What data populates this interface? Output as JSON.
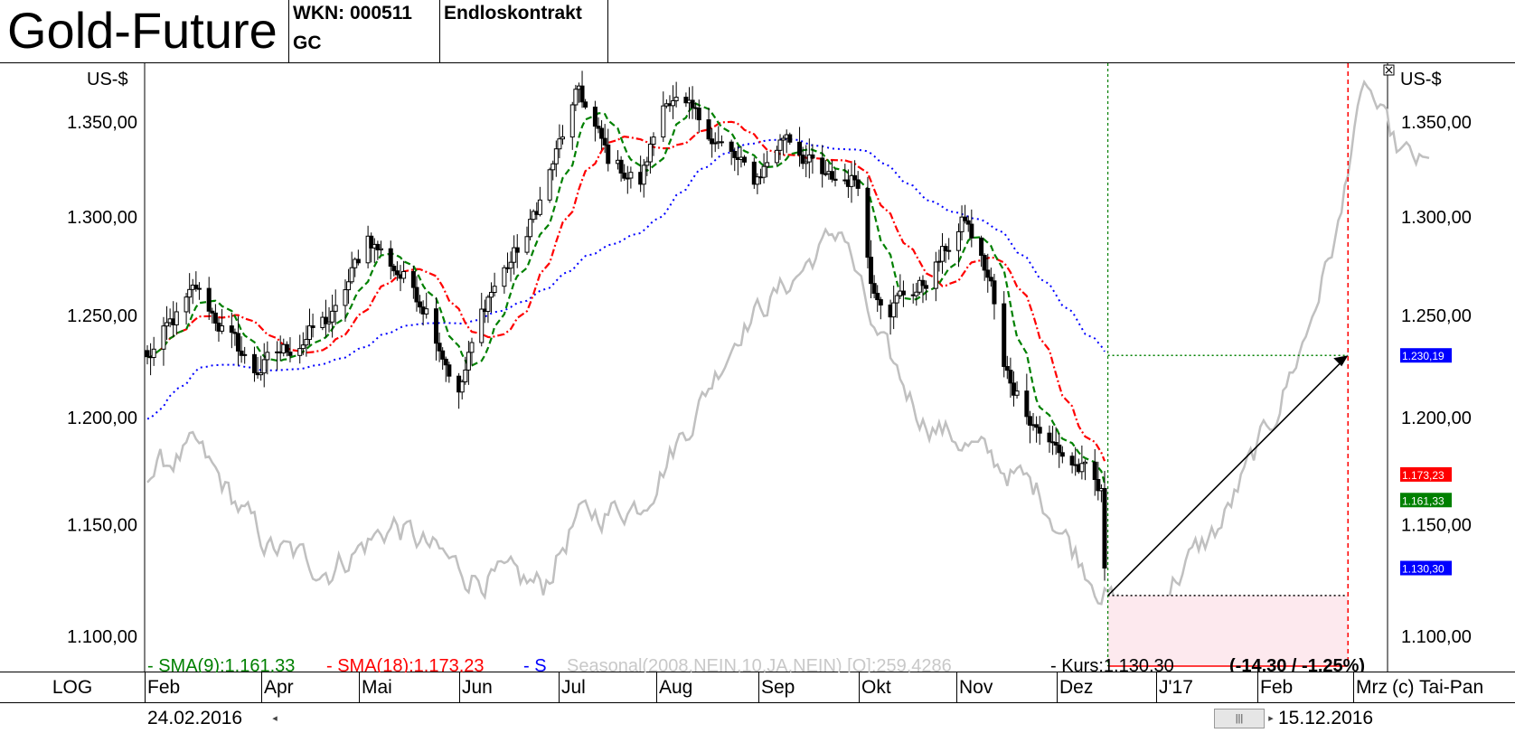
{
  "header": {
    "title": "Gold-Future",
    "wkn": "WKN: 000511",
    "symbol": "GC",
    "contract": "Endloskontrakt"
  },
  "footer": {
    "log_label": "LOG",
    "credit": "(c) Tai-Pan",
    "date_start": "24.02.2016",
    "date_end": "15.12.2016",
    "scroll_left_glyph": "◂",
    "scroll_thumb_glyph": "|||",
    "scroll_right_glyph": "▸"
  },
  "colors": {
    "candle_up": "#ffffff",
    "candle_down": "#000000",
    "sma9": "#008000",
    "sma18": "#ff0000",
    "sma_blue": "#0000ff",
    "seasonal": "#c0c0c0",
    "forecast_box": "#fde9ee"
  },
  "chart_data": {
    "type": "candlestick",
    "title": "Gold-Future",
    "scale": "log",
    "unit_left": "US-$",
    "unit_right": "US-$",
    "yticks": [
      1100,
      1150,
      1200,
      1250,
      1300,
      1350
    ],
    "ytick_labels": [
      "1.100,00",
      "1.150,00",
      "1.200,00",
      "1.250,00",
      "1.300,00",
      "1.350,00"
    ],
    "ylim": [
      1085,
      1378
    ],
    "x_months": [
      "Feb",
      "Apr",
      "Mai",
      "Jun",
      "Jul",
      "Aug",
      "Sep",
      "Okt",
      "Nov",
      "Dez",
      "J'17",
      "Feb",
      "Mrz"
    ],
    "x_dates": [
      "2016-02-24",
      "2016-12-15"
    ],
    "price_series": {
      "name": "Gold-Future (daily close, approx.)",
      "anchors": [
        [
          "2016-02-24",
          1228
        ],
        [
          "2016-03-10",
          1262
        ],
        [
          "2016-03-28",
          1222
        ],
        [
          "2016-04-22",
          1250
        ],
        [
          "2016-05-02",
          1290
        ],
        [
          "2016-05-20",
          1255
        ],
        [
          "2016-05-30",
          1212
        ],
        [
          "2016-06-08",
          1260
        ],
        [
          "2016-06-20",
          1290
        ],
        [
          "2016-07-06",
          1366
        ],
        [
          "2016-07-15",
          1330
        ],
        [
          "2016-07-25",
          1318
        ],
        [
          "2016-08-02",
          1365
        ],
        [
          "2016-08-15",
          1345
        ],
        [
          "2016-08-29",
          1318
        ],
        [
          "2016-09-08",
          1345
        ],
        [
          "2016-09-20",
          1318
        ],
        [
          "2016-09-30",
          1320
        ],
        [
          "2016-10-04",
          1268
        ],
        [
          "2016-10-10",
          1257
        ],
        [
          "2016-10-20",
          1265
        ],
        [
          "2016-11-02",
          1298
        ],
        [
          "2016-11-10",
          1265
        ],
        [
          "2016-11-14",
          1222
        ],
        [
          "2016-11-28",
          1188
        ],
        [
          "2016-12-08",
          1175
        ],
        [
          "2016-12-14",
          1162
        ],
        [
          "2016-12-15",
          1130.3
        ]
      ]
    },
    "indicators": [
      {
        "name": "SMA(9)",
        "value": 1161.33,
        "label": "SMA(9):1.161,33",
        "color": "#008000",
        "style": "dashed"
      },
      {
        "name": "SMA(18)",
        "value": 1173.23,
        "label": "SMA(18):1.173,23",
        "color": "#ff0000",
        "style": "dash-dot"
      },
      {
        "name": "S",
        "label": "S",
        "color": "#0000ff",
        "style": "dotted"
      }
    ],
    "seasonal": {
      "label": "Seasonal(2008,NEIN,10,JA,NEIN) [O]:259,4286",
      "color": "#c0c0c0",
      "anchors": [
        [
          "2016-02-24",
          1175
        ],
        [
          "2016-03-10",
          1185
        ],
        [
          "2016-04-01",
          1140
        ],
        [
          "2016-04-20",
          1130
        ],
        [
          "2016-05-10",
          1150
        ],
        [
          "2016-06-01",
          1128
        ],
        [
          "2016-06-25",
          1122
        ],
        [
          "2016-07-05",
          1152
        ],
        [
          "2016-07-25",
          1160
        ],
        [
          "2016-08-10",
          1200
        ],
        [
          "2016-08-25",
          1245
        ],
        [
          "2016-09-10",
          1268
        ],
        [
          "2016-09-25",
          1295
        ],
        [
          "2016-10-05",
          1240
        ],
        [
          "2016-10-20",
          1200
        ],
        [
          "2016-11-05",
          1185
        ],
        [
          "2016-11-25",
          1165
        ],
        [
          "2016-12-05",
          1140
        ],
        [
          "2016-12-15",
          1120
        ],
        [
          "2016-12-25",
          1100
        ],
        [
          "2017-01-05",
          1125
        ],
        [
          "2017-01-20",
          1150
        ],
        [
          "2017-02-05",
          1200
        ],
        [
          "2017-02-15",
          1240
        ],
        [
          "2017-02-26",
          1300
        ],
        [
          "2017-03-02",
          1350
        ],
        [
          "2017-03-06",
          1368
        ],
        [
          "2017-03-15",
          1335
        ],
        [
          "2017-03-25",
          1325
        ]
      ]
    },
    "current_price": {
      "label": "Kurs:1.130,30",
      "value": 1130.3,
      "change_label": "(-14,30 / -1,25%)",
      "change": -14.3,
      "change_pct": -1.25
    },
    "right_badges": [
      {
        "text": "1.230,19",
        "value": 1230.19,
        "color": "#0000ff"
      },
      {
        "text": "1.173,23",
        "value": 1173.23,
        "color": "#ff0000"
      },
      {
        "text": "1.161,33",
        "value": 1161.33,
        "color": "#008000"
      },
      {
        "text": "1.130,30",
        "value": 1130.3,
        "color": "#0000ff"
      }
    ],
    "forecast": {
      "start_date": "2016-12-16",
      "end_date": "2017-02-28",
      "start_value": 1118,
      "target_value": 1230.19,
      "low_value": 1087
    }
  }
}
